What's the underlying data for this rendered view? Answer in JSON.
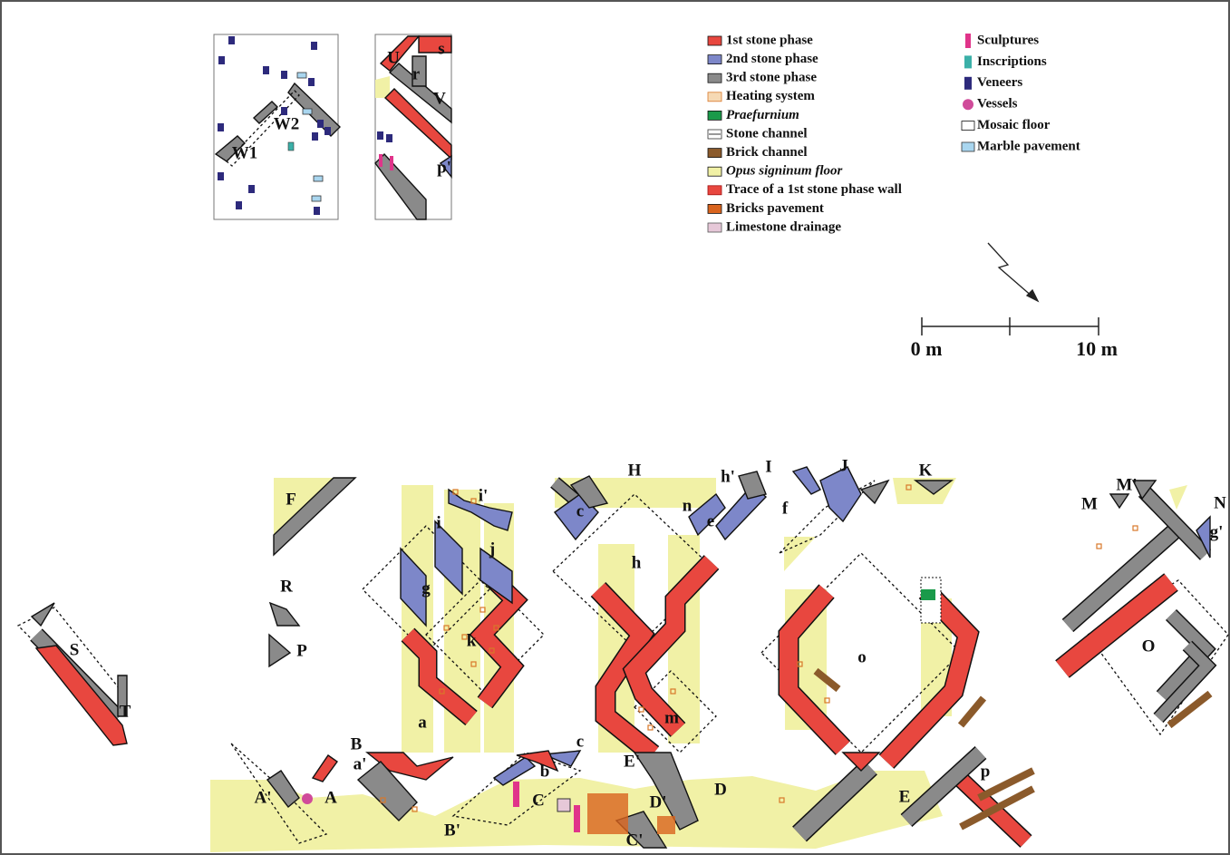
{
  "legend": {
    "left": [
      "1st stone phase",
      "2nd stone phase",
      "3rd stone phase",
      "Heating system",
      "Praefurnium",
      "Stone channel",
      "Brick channel",
      "Opus signinum floor",
      "Trace of a 1st stone phase wall",
      "Bricks pavement",
      "Limestone drainage"
    ],
    "right": [
      "Sculptures",
      "Inscriptions",
      "Veneers",
      "Vessels",
      "Mosaic floor",
      "Marble pavement"
    ]
  },
  "scale": {
    "start": "0 m",
    "end": "10 m"
  },
  "inset": {
    "labels": [
      "U",
      "s",
      "r",
      "V",
      "p'",
      "W1",
      "W2"
    ]
  },
  "plan": {
    "labels": [
      "F",
      "R",
      "P",
      "S",
      "T",
      "g",
      "k",
      "i",
      "i'",
      "j",
      "a",
      "a'",
      "B",
      "A'",
      "A",
      "b",
      "C",
      "c",
      "c",
      "E'",
      "D'",
      "m",
      "h",
      "H",
      "n",
      "e",
      "h'",
      "I",
      "J",
      "K",
      "f",
      "o",
      "D",
      "E",
      "p",
      "B'",
      "C'",
      "M",
      "M'",
      "N",
      "g'",
      "O"
    ]
  }
}
